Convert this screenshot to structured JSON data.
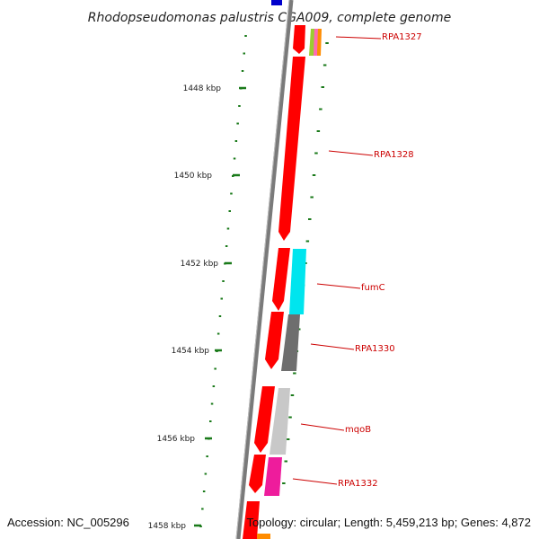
{
  "title": "Rhodopseudomonas palustris CGA009, complete genome",
  "accession": "Accession: NC_005296",
  "summary": "Topology: circular; Length: 5,459,213 bp; Genes: 4,872",
  "kbp_ticks": [
    "1448 kbp",
    "1450 kbp",
    "1452 kbp",
    "1454 kbp",
    "1456 kbp",
    "1458 kbp"
  ],
  "gene_labels": [
    "RPA1327",
    "RPA1328",
    "fumC",
    "RPA1330",
    "mqoB",
    "RPA1332"
  ],
  "colors": {
    "tick": "#1a7a1a",
    "backbone": "#7a7a7a",
    "forward_strand": "#ff0000",
    "label_red": "#cc0000",
    "fumC": "#00e5ee",
    "RPA1330": "#6e6e6e",
    "mqoB": "#c8c8c8",
    "RPA1332": "#ee1c9c",
    "top_blue": "#0000cc",
    "bottom_orange": "#ff8c00"
  }
}
